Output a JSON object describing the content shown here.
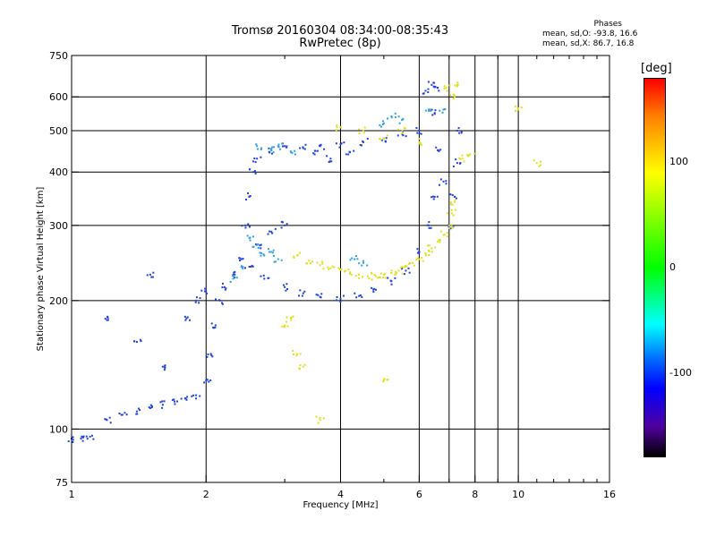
{
  "title_line1": "Tromsø 20160304 08:34:00-08:35:43",
  "title_line2": "RwPretec (8p)",
  "phases": {
    "title": "Phases",
    "o_line": "mean, sd,O: -93.8, 16.6",
    "x_line": "mean, sd,X: 86.7, 16.8"
  },
  "colorbar": {
    "unit": "[deg]",
    "ticks": [
      "100",
      "0",
      "-100"
    ],
    "tick_values": [
      100,
      0,
      -100
    ],
    "range": [
      -180,
      180
    ],
    "colors": [
      "#ff0000",
      "#ff8000",
      "#ffff00",
      "#00ff00",
      "#00ffff",
      "#0060ff",
      "#0000ff",
      "#5000a0",
      "#000000"
    ]
  },
  "chart_data": {
    "type": "scatter",
    "xlabel": "Frequency [MHz]",
    "ylabel": "Stationary phase Virtual Height [km]",
    "x_scale": "log",
    "y_scale": "log",
    "xlim": [
      1,
      16
    ],
    "ylim": [
      75,
      750
    ],
    "x_ticks": [
      1,
      2,
      4,
      6,
      8,
      10,
      16
    ],
    "x_tick_labels": [
      "1",
      "2",
      "4",
      "6",
      "8",
      "10",
      "16"
    ],
    "y_ticks": [
      75,
      100,
      200,
      300,
      400,
      500,
      600,
      750
    ],
    "y_tick_labels": [
      "75",
      "100",
      "200",
      "300",
      "400",
      "500",
      "600",
      "750"
    ],
    "grid_x": [
      2,
      4,
      6,
      7,
      8,
      9,
      10
    ],
    "grid_y": [
      100,
      200,
      300,
      400,
      500,
      600
    ],
    "colors": {
      "o_trace": "#2040e0",
      "x_trace": "#e0e020",
      "mid_trace": "#30a0e0"
    },
    "series": [
      {
        "color": "#2040e0",
        "points": [
          [
            1.0,
            95
          ],
          [
            1.05,
            95
          ],
          [
            1.1,
            96
          ],
          [
            1.2,
            105
          ],
          [
            1.3,
            108
          ],
          [
            1.4,
            110
          ],
          [
            1.5,
            112
          ],
          [
            1.6,
            114
          ],
          [
            1.7,
            116
          ],
          [
            1.8,
            118
          ],
          [
            1.9,
            120
          ],
          [
            2.0,
            130
          ],
          [
            2.05,
            150
          ],
          [
            2.1,
            175
          ],
          [
            2.15,
            200
          ],
          [
            2.2,
            215
          ],
          [
            2.3,
            230
          ],
          [
            2.4,
            250
          ],
          [
            2.45,
            300
          ],
          [
            2.5,
            350
          ],
          [
            2.55,
            400
          ],
          [
            2.6,
            430
          ],
          [
            2.8,
            450
          ],
          [
            3.0,
            460
          ],
          [
            3.3,
            455
          ],
          [
            3.6,
            460
          ],
          [
            4.0,
            465
          ],
          [
            4.5,
            470
          ],
          [
            5.0,
            480
          ],
          [
            5.5,
            490
          ],
          [
            6.0,
            500
          ],
          [
            6.2,
            620
          ],
          [
            6.4,
            640
          ],
          [
            6.6,
            630
          ],
          [
            6.5,
            550
          ],
          [
            6.6,
            450
          ],
          [
            6.8,
            380
          ],
          [
            7.0,
            300
          ],
          [
            7.2,
            350
          ],
          [
            7.3,
            420
          ],
          [
            7.3,
            500
          ],
          [
            2.5,
            240
          ],
          [
            2.7,
            225
          ],
          [
            3.0,
            215
          ],
          [
            3.3,
            208
          ],
          [
            3.6,
            204
          ],
          [
            4.0,
            202
          ],
          [
            4.4,
            205
          ],
          [
            4.8,
            212
          ],
          [
            5.2,
            222
          ],
          [
            5.6,
            235
          ],
          [
            6.0,
            260
          ],
          [
            6.3,
            300
          ],
          [
            6.5,
            350
          ],
          [
            2.6,
            270
          ],
          [
            2.8,
            290
          ],
          [
            3.0,
            300
          ],
          [
            1.4,
            160
          ],
          [
            1.6,
            140
          ],
          [
            1.8,
            180
          ],
          [
            1.9,
            200
          ],
          [
            2.0,
            210
          ],
          [
            3.5,
            440
          ],
          [
            3.8,
            430
          ],
          [
            4.2,
            445
          ],
          [
            1.2,
            180
          ],
          [
            1.5,
            230
          ]
        ]
      },
      {
        "color": "#e0e020",
        "points": [
          [
            3.2,
            255
          ],
          [
            3.4,
            248
          ],
          [
            3.6,
            242
          ],
          [
            3.8,
            238
          ],
          [
            4.0,
            236
          ],
          [
            4.2,
            233
          ],
          [
            4.4,
            230
          ],
          [
            4.6,
            228
          ],
          [
            4.8,
            228
          ],
          [
            5.0,
            230
          ],
          [
            5.2,
            232
          ],
          [
            5.4,
            235
          ],
          [
            5.6,
            240
          ],
          [
            5.8,
            245
          ],
          [
            6.0,
            250
          ],
          [
            6.2,
            258
          ],
          [
            6.4,
            265
          ],
          [
            6.6,
            275
          ],
          [
            6.8,
            285
          ],
          [
            7.0,
            300
          ],
          [
            7.1,
            320
          ],
          [
            7.2,
            340
          ],
          [
            7.2,
            600
          ],
          [
            7.3,
            640
          ],
          [
            6.9,
            630
          ],
          [
            4.0,
            510
          ],
          [
            4.5,
            500
          ],
          [
            5.0,
            480
          ],
          [
            5.5,
            500
          ],
          [
            6.0,
            470
          ],
          [
            3.1,
            180
          ],
          [
            3.2,
            150
          ],
          [
            3.3,
            140
          ],
          [
            3.6,
            105
          ],
          [
            5.0,
            130
          ],
          [
            7.5,
            430
          ],
          [
            7.8,
            440
          ],
          [
            10.0,
            560
          ],
          [
            11.0,
            420
          ],
          [
            3.0,
            175
          ]
        ]
      },
      {
        "color": "#30a0e0",
        "points": [
          [
            2.5,
            280
          ],
          [
            2.6,
            270
          ],
          [
            2.7,
            255
          ],
          [
            2.8,
            260
          ],
          [
            2.9,
            250
          ],
          [
            2.6,
            460
          ],
          [
            2.8,
            450
          ],
          [
            2.9,
            460
          ],
          [
            3.1,
            445
          ],
          [
            5.0,
            520
          ],
          [
            5.2,
            540
          ],
          [
            5.5,
            530
          ],
          [
            6.3,
            560
          ],
          [
            6.8,
            560
          ],
          [
            4.3,
            250
          ],
          [
            4.5,
            245
          ],
          [
            2.4,
            240
          ],
          [
            2.3,
            225
          ]
        ]
      }
    ]
  }
}
